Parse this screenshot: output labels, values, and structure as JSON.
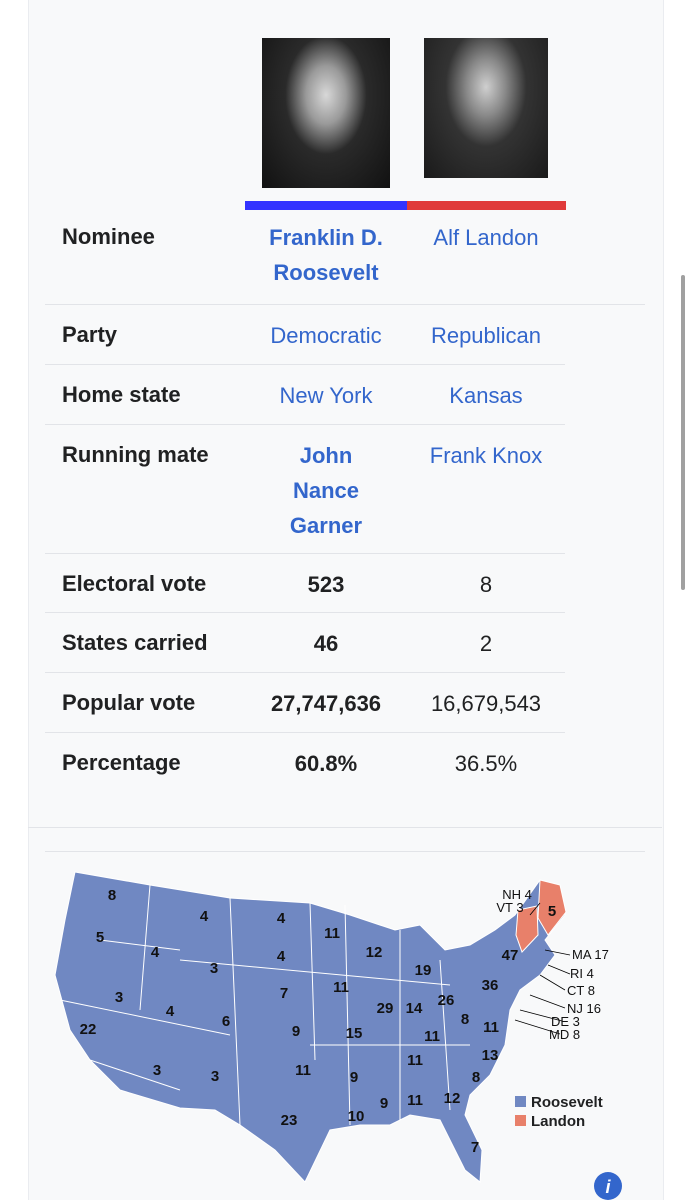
{
  "rows": [
    {
      "label": "Nominee",
      "values": [
        "Franklin D. Roosevelt",
        "Alf Landon"
      ]
    },
    {
      "label": "Party",
      "values": [
        "Democratic",
        "Republican"
      ]
    },
    {
      "label": "Home state",
      "values": [
        "New York",
        "Kansas"
      ]
    },
    {
      "label": "Running mate",
      "values": [
        "John Nance Garner",
        "Frank Knox"
      ]
    },
    {
      "label": "Electoral vote",
      "values": [
        "523",
        "8"
      ]
    },
    {
      "label": "States carried",
      "values": [
        "46",
        "2"
      ]
    },
    {
      "label": "Popular vote",
      "values": [
        "27,747,636",
        "16,679,543"
      ]
    },
    {
      "label": "Percentage",
      "values": [
        "60.8%",
        "36.5%"
      ]
    }
  ],
  "map": {
    "state_labels": [
      "8",
      "5",
      "4",
      "4",
      "4",
      "11",
      "3",
      "4",
      "12",
      "19",
      "47",
      "3",
      "4",
      "7",
      "11",
      "36",
      "26",
      "22",
      "6",
      "9",
      "29",
      "14",
      "15",
      "8",
      "11",
      "11",
      "3",
      "3",
      "11",
      "9",
      "11",
      "13",
      "8",
      "23",
      "10",
      "9",
      "11",
      "12",
      "7",
      "5"
    ],
    "callouts": [
      "NH 4",
      "VT 3",
      "MA 17",
      "RI 4",
      "CT 8",
      "NJ 16",
      "DE 3",
      "MD 8"
    ],
    "legend": [
      "Roosevelt",
      "Landon"
    ]
  }
}
